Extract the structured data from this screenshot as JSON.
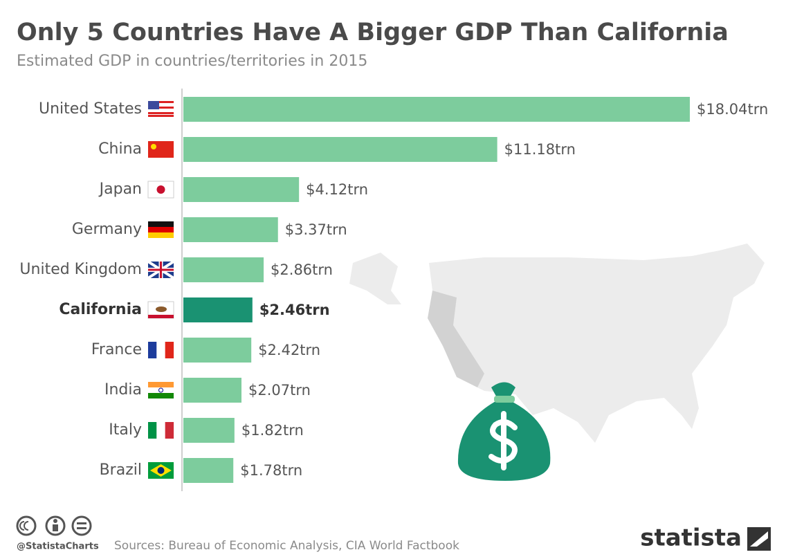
{
  "chart_data": {
    "type": "bar",
    "title": "Only 5 Countries Have A Bigger GDP Than California",
    "subtitle": "Estimated GDP in countries/territories in 2015",
    "categories": [
      "United States",
      "China",
      "Japan",
      "Germany",
      "United Kingdom",
      "California",
      "France",
      "India",
      "Italy",
      "Brazil"
    ],
    "values": [
      18.04,
      11.18,
      4.12,
      3.37,
      2.86,
      2.46,
      2.42,
      2.07,
      1.82,
      1.78
    ],
    "value_labels": [
      "$18.04trn",
      "$11.18trn",
      "$4.12trn",
      "$3.37trn",
      "$2.86trn",
      "$2.46trn",
      "$2.42trn",
      "$2.07trn",
      "$1.82trn",
      "$1.78trn"
    ],
    "color": "#7dcc9d",
    "highlight": {
      "index": 5,
      "color": "#1a9272"
    },
    "credit": "@StatistaCharts",
    "source": "Sources: Bureau of Economic Analysis, CIA World Factbook",
    "brand": "statista"
  }
}
